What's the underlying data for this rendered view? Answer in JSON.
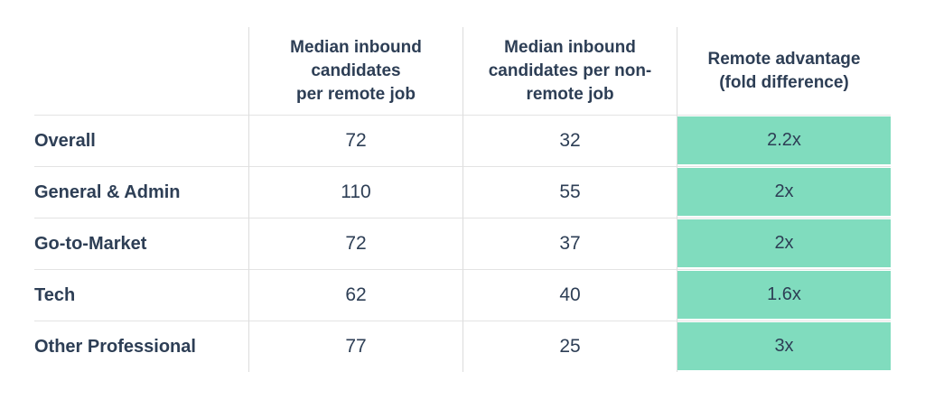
{
  "colors": {
    "background": "#ffffff",
    "text_navy": "#2d3e55",
    "highlight_teal": "#80dcbe",
    "grid_line": "#e3e3e3"
  },
  "table": {
    "corner_label": "",
    "columns": [
      {
        "label": "Median inbound\ncandidates\nper remote job"
      },
      {
        "label": "Median inbound\ncandidates per non-\nremote job"
      },
      {
        "label": "Remote advantage\n(fold difference)",
        "highlighted": true
      }
    ],
    "rows": [
      {
        "category": "Overall",
        "remote": "72",
        "non_remote": "32",
        "advantage": "2.2x"
      },
      {
        "category": "General & Admin",
        "remote": "110",
        "non_remote": "55",
        "advantage": "2x"
      },
      {
        "category": "Go-to-Market",
        "remote": "72",
        "non_remote": "37",
        "advantage": "2x"
      },
      {
        "category": "Tech",
        "remote": "62",
        "non_remote": "40",
        "advantage": "1.6x"
      },
      {
        "category": "Other Professional",
        "remote": "77",
        "non_remote": "25",
        "advantage": "3x"
      }
    ]
  },
  "chart_data": {
    "type": "table",
    "columns": [
      "",
      "Median inbound candidates per remote job",
      "Median inbound candidates per non-remote job",
      "Remote advantage (fold difference)"
    ],
    "rows": [
      [
        "Overall",
        72,
        32,
        "2.2x"
      ],
      [
        "General & Admin",
        110,
        55,
        "2x"
      ],
      [
        "Go-to-Market",
        72,
        37,
        "2x"
      ],
      [
        "Tech",
        62,
        40,
        "1.6x"
      ],
      [
        "Other Professional",
        77,
        25,
        "3x"
      ]
    ],
    "highlight_column": "Remote advantage (fold difference)",
    "highlight_color": "#80dcbe",
    "layout": "header row on top, category labels in first column, highlighted last column with teal cell fills"
  }
}
